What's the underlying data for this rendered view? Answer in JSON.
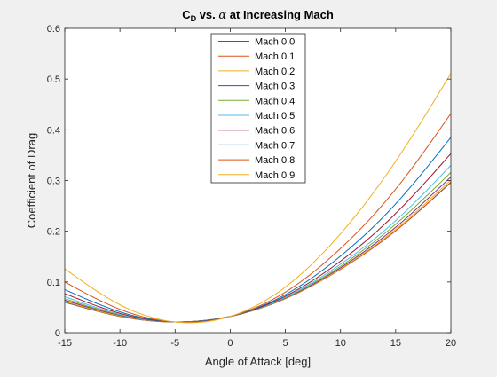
{
  "chart_data": {
    "type": "line",
    "title": {
      "prefix": "C",
      "subscript": "D",
      "middle": " vs. ",
      "symbol": "α",
      "suffix": " at Increasing Mach"
    },
    "xlabel": "Angle of Attack [deg]",
    "ylabel": "Coefficient of Drag",
    "xlim": [
      -15,
      20
    ],
    "ylim": [
      0,
      0.6
    ],
    "xticks": [
      -15,
      -10,
      -5,
      0,
      5,
      10,
      15,
      20
    ],
    "yticks": [
      0,
      0.1,
      0.2,
      0.3,
      0.4,
      0.5,
      0.6
    ],
    "xtick_labels": [
      "-15",
      "-10",
      "-5",
      "0",
      "5",
      "10",
      "15",
      "20"
    ],
    "ytick_labels": [
      "0",
      "0.1",
      "0.2",
      "0.3",
      "0.4",
      "0.5",
      "0.6"
    ],
    "grid": false,
    "legend_position": "top-center",
    "x": [
      -15,
      -10,
      -5,
      0,
      5,
      10,
      15,
      20
    ],
    "series": [
      {
        "name": "Mach 0.0",
        "color": "#0072BD",
        "values": [
          0.06,
          0.032,
          0.021,
          0.032,
          0.067,
          0.125,
          0.201,
          0.296
        ]
      },
      {
        "name": "Mach 0.1",
        "color": "#D95319",
        "values": [
          0.061,
          0.032,
          0.021,
          0.032,
          0.067,
          0.125,
          0.201,
          0.297
        ]
      },
      {
        "name": "Mach 0.2",
        "color": "#EDB120",
        "values": [
          0.062,
          0.033,
          0.021,
          0.032,
          0.067,
          0.126,
          0.204,
          0.301
        ]
      },
      {
        "name": "Mach 0.3",
        "color": "#7E2F8E",
        "values": [
          0.064,
          0.034,
          0.021,
          0.032,
          0.068,
          0.128,
          0.208,
          0.307
        ]
      },
      {
        "name": "Mach 0.4",
        "color": "#77AC30",
        "values": [
          0.067,
          0.035,
          0.021,
          0.032,
          0.069,
          0.131,
          0.214,
          0.316
        ]
      },
      {
        "name": "Mach 0.5",
        "color": "#4DBEEE",
        "values": [
          0.071,
          0.036,
          0.021,
          0.032,
          0.07,
          0.135,
          0.221,
          0.33
        ]
      },
      {
        "name": "Mach 0.6",
        "color": "#A2142F",
        "values": [
          0.077,
          0.038,
          0.021,
          0.032,
          0.072,
          0.141,
          0.235,
          0.353
        ]
      },
      {
        "name": "Mach 0.7",
        "color": "#0072BD",
        "values": [
          0.085,
          0.041,
          0.021,
          0.032,
          0.075,
          0.151,
          0.254,
          0.385
        ]
      },
      {
        "name": "Mach 0.8",
        "color": "#D95319",
        "values": [
          0.1,
          0.046,
          0.021,
          0.032,
          0.08,
          0.166,
          0.283,
          0.432
        ]
      },
      {
        "name": "Mach 0.9",
        "color": "#EDB120",
        "values": [
          0.126,
          0.055,
          0.021,
          0.032,
          0.09,
          0.195,
          0.338,
          0.511
        ]
      }
    ]
  },
  "colors": {
    "figure_background": "#f0f0f0",
    "axes_background": "#ffffff",
    "axes_edge": "#262626"
  }
}
